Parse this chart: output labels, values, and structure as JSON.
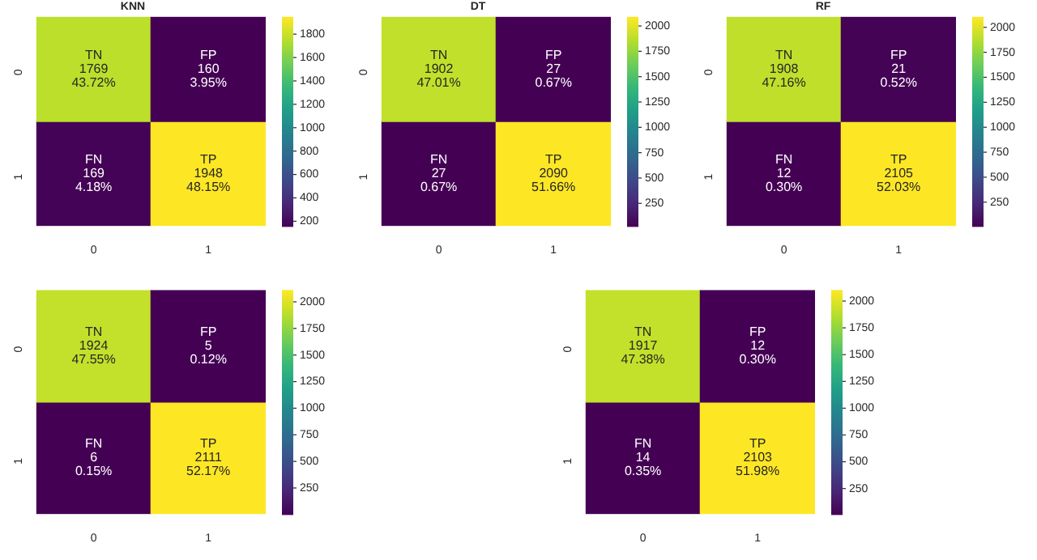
{
  "chart_data": [
    {
      "type": "heatmap",
      "title": "KNN",
      "categories": [
        "0",
        "1"
      ],
      "y_categories": [
        "0",
        "1"
      ],
      "cells": [
        [
          1769,
          160
        ],
        [
          169,
          1948
        ]
      ],
      "cell_labels": [
        [
          "TN\n1769\n43.72%",
          "FP\n160\n3.95%"
        ],
        [
          "FN\n169\n4.18%",
          "TP\n1948\n48.15%"
        ]
      ],
      "clim": [
        160,
        1948
      ],
      "cticks": [
        200,
        400,
        600,
        800,
        1000,
        1200,
        1400,
        1600,
        1800
      ]
    },
    {
      "type": "heatmap",
      "title": "DT",
      "categories": [
        "0",
        "1"
      ],
      "y_categories": [
        "0",
        "1"
      ],
      "cells": [
        [
          1902,
          27
        ],
        [
          27,
          2090
        ]
      ],
      "cell_labels": [
        [
          "TN\n1902\n47.01%",
          "FP\n27\n0.67%"
        ],
        [
          "FN\n27\n0.67%",
          "TP\n2090\n51.66%"
        ]
      ],
      "clim": [
        27,
        2090
      ],
      "cticks": [
        250,
        500,
        750,
        1000,
        1250,
        1500,
        1750,
        2000
      ]
    },
    {
      "type": "heatmap",
      "title": "RF",
      "categories": [
        "0",
        "1"
      ],
      "y_categories": [
        "0",
        "1"
      ],
      "cells": [
        [
          1908,
          21
        ],
        [
          12,
          2105
        ]
      ],
      "cell_labels": [
        [
          "TN\n1908\n47.16%",
          "FP\n21\n0.52%"
        ],
        [
          "FN\n12\n0.30%",
          "TP\n2105\n52.03%"
        ]
      ],
      "clim": [
        12,
        2105
      ],
      "cticks": [
        250,
        500,
        750,
        1000,
        1250,
        1500,
        1750,
        2000
      ]
    },
    {
      "type": "heatmap",
      "categories": [
        "0",
        "1"
      ],
      "y_categories": [
        "0",
        "1"
      ],
      "cells": [
        [
          1924,
          5
        ],
        [
          6,
          2111
        ]
      ],
      "cell_labels": [
        [
          "TN\n1924\n47.55%",
          "FP\n5\n0.12%"
        ],
        [
          "FN\n6\n0.15%",
          "TP\n2111\n52.17%"
        ]
      ],
      "clim": [
        5,
        2111
      ],
      "cticks": [
        250,
        500,
        750,
        1000,
        1250,
        1500,
        1750,
        2000
      ]
    },
    {
      "type": "heatmap",
      "categories": [
        "0",
        "1"
      ],
      "y_categories": [
        "0",
        "1"
      ],
      "cells": [
        [
          1917,
          12
        ],
        [
          14,
          2103
        ]
      ],
      "cell_labels": [
        [
          "TN\n1917\n47.38%",
          "FP\n12\n0.30%"
        ],
        [
          "FN\n14\n0.35%",
          "TP\n2103\n51.98%"
        ]
      ],
      "clim": [
        12,
        2103
      ],
      "cticks": [
        250,
        500,
        750,
        1000,
        1250,
        1500,
        1750,
        2000
      ]
    }
  ]
}
